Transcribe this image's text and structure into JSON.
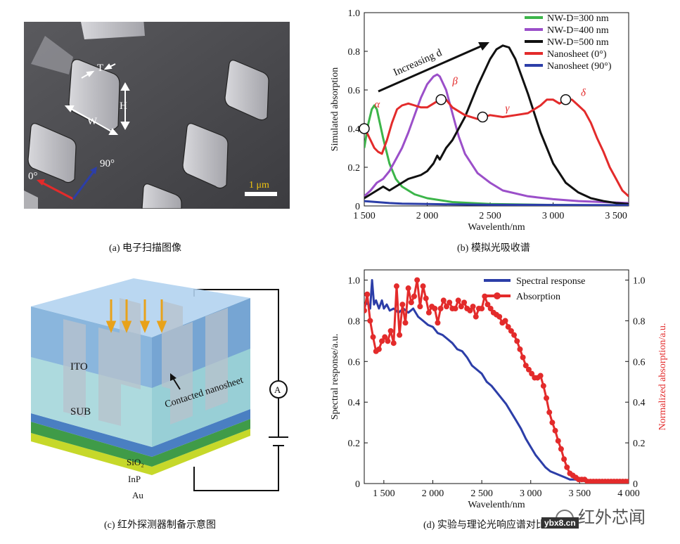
{
  "panel_a": {
    "caption": "(a) 电子扫描图像",
    "labels": {
      "T": "T",
      "H": "H",
      "W": "W",
      "angle0": "0°",
      "angle90": "90°",
      "scale": "1 μm"
    }
  },
  "panel_b": {
    "caption": "(b) 模拟光吸收谱",
    "annotation": "Increasing d",
    "greek": [
      "α",
      "β",
      "γ",
      "δ"
    ],
    "colors": {
      "green": "#3cb54a",
      "purple": "#9b4fc9",
      "black": "#111111",
      "red": "#e32b2b",
      "blue": "#2c3ea8"
    }
  },
  "panel_c": {
    "caption": "(c) 红外探测器制备示意图",
    "labels": {
      "ito": "ITO",
      "sub": "SUB",
      "contacted": "Contacted nanosheet",
      "sio2": "SiO₂",
      "inp": "InP",
      "au": "Au",
      "ammeter": "A"
    }
  },
  "panel_d": {
    "caption": "(d) 实验与理论光响应谱对比"
  },
  "watermark": {
    "brand": "红外芯闻",
    "site": "ybx8.cn"
  },
  "chart_data": [
    {
      "type": "line",
      "title": "",
      "xlabel": "Wavelenth/nm",
      "ylabel": "Simulated absorption",
      "xlim": [
        1500,
        3600
      ],
      "ylim": [
        0,
        1.0
      ],
      "xticks": [
        "1 500",
        "2 000",
        "2 500",
        "3 000",
        "3 500"
      ],
      "xtick_values": [
        1500,
        2000,
        2500,
        3000,
        3500
      ],
      "yticks": [
        "0",
        "0.2",
        "0.4",
        "0.6",
        "0.8",
        "1.0"
      ],
      "ytick_values": [
        0,
        0.2,
        0.4,
        0.6,
        0.8,
        1.0
      ],
      "legend": "top-right",
      "series": [
        {
          "name": "NW-D=300 nm",
          "color": "#3cb54a",
          "x": [
            1500,
            1530,
            1560,
            1580,
            1600,
            1620,
            1650,
            1700,
            1750,
            1800,
            1900,
            2000,
            2200,
            2500,
            3000,
            3600
          ],
          "y": [
            0.3,
            0.42,
            0.5,
            0.52,
            0.5,
            0.44,
            0.35,
            0.22,
            0.14,
            0.1,
            0.06,
            0.04,
            0.02,
            0.01,
            0.005,
            0.002
          ]
        },
        {
          "name": "NW-D=400 nm",
          "color": "#9b4fc9",
          "x": [
            1500,
            1550,
            1600,
            1650,
            1700,
            1750,
            1800,
            1850,
            1900,
            1950,
            2000,
            2050,
            2080,
            2100,
            2150,
            2200,
            2250,
            2300,
            2400,
            2500,
            2600,
            2800,
            3000,
            3200,
            3400,
            3600
          ],
          "y": [
            0.05,
            0.08,
            0.12,
            0.14,
            0.18,
            0.24,
            0.3,
            0.38,
            0.47,
            0.56,
            0.63,
            0.67,
            0.68,
            0.67,
            0.6,
            0.48,
            0.36,
            0.27,
            0.17,
            0.12,
            0.08,
            0.05,
            0.035,
            0.025,
            0.02,
            0.015
          ]
        },
        {
          "name": "NW-D=500 nm",
          "color": "#111111",
          "x": [
            1500,
            1550,
            1600,
            1650,
            1700,
            1750,
            1800,
            1850,
            1900,
            1950,
            2000,
            2050,
            2080,
            2100,
            2150,
            2200,
            2300,
            2400,
            2500,
            2550,
            2600,
            2650,
            2700,
            2800,
            2900,
            3000,
            3100,
            3200,
            3300,
            3400,
            3500,
            3600
          ],
          "y": [
            0.04,
            0.06,
            0.08,
            0.1,
            0.08,
            0.1,
            0.12,
            0.14,
            0.15,
            0.16,
            0.18,
            0.22,
            0.26,
            0.24,
            0.3,
            0.34,
            0.46,
            0.62,
            0.76,
            0.81,
            0.83,
            0.82,
            0.76,
            0.58,
            0.38,
            0.22,
            0.12,
            0.07,
            0.04,
            0.025,
            0.015,
            0.01
          ]
        },
        {
          "name": "Nanosheet (0°)",
          "color": "#e32b2b",
          "x": [
            1500,
            1520,
            1550,
            1580,
            1610,
            1640,
            1680,
            1720,
            1760,
            1800,
            1850,
            1900,
            1950,
            2000,
            2050,
            2100,
            2150,
            2200,
            2300,
            2400,
            2450,
            2500,
            2600,
            2700,
            2800,
            2900,
            2950,
            3000,
            3050,
            3100,
            3150,
            3200,
            3250,
            3300,
            3350,
            3400,
            3450,
            3500,
            3550,
            3600
          ],
          "y": [
            0.4,
            0.38,
            0.34,
            0.3,
            0.28,
            0.27,
            0.34,
            0.43,
            0.5,
            0.52,
            0.53,
            0.52,
            0.51,
            0.51,
            0.53,
            0.55,
            0.55,
            0.51,
            0.47,
            0.45,
            0.46,
            0.47,
            0.46,
            0.47,
            0.48,
            0.52,
            0.55,
            0.55,
            0.53,
            0.55,
            0.55,
            0.52,
            0.49,
            0.43,
            0.35,
            0.28,
            0.2,
            0.14,
            0.08,
            0.05
          ]
        },
        {
          "name": "Nanosheet (90°)",
          "color": "#2c3ea8",
          "x": [
            1500,
            1600,
            1700,
            1800,
            2000,
            2200,
            2500,
            3000,
            3600
          ],
          "y": [
            0.025,
            0.02,
            0.015,
            0.012,
            0.01,
            0.008,
            0.006,
            0.005,
            0.004
          ]
        }
      ],
      "markers_x": [
        1500,
        2110,
        2440,
        3100
      ],
      "markers_y": [
        0.4,
        0.55,
        0.46,
        0.55
      ],
      "greek_x": [
        1580,
        2200,
        2620,
        3220
      ],
      "greek_y": [
        0.51,
        0.63,
        0.49,
        0.57
      ]
    },
    {
      "type": "line",
      "title": "",
      "xlabel": "Wavelenth/nm",
      "ylabel": "Spectral response/a.u.",
      "y2label": "Normalized absorption/a.u.",
      "xlim": [
        1300,
        4000
      ],
      "ylim": [
        0,
        1.05
      ],
      "y2lim": [
        0,
        1.05
      ],
      "xticks": [
        "1 500",
        "2 000",
        "2 500",
        "3 000",
        "3 500",
        "4 000"
      ],
      "xtick_values": [
        1500,
        2000,
        2500,
        3000,
        3500,
        4000
      ],
      "yticks": [
        "0",
        "0.2",
        "0.4",
        "0.6",
        "0.8",
        "1.0"
      ],
      "ytick_values": [
        0,
        0.2,
        0.4,
        0.6,
        0.8,
        1.0
      ],
      "legend": "top-right",
      "series": [
        {
          "name": "Spectral response",
          "color": "#2c3ea8",
          "axis": "left",
          "x": [
            1300,
            1330,
            1360,
            1380,
            1400,
            1420,
            1450,
            1480,
            1500,
            1530,
            1560,
            1600,
            1650,
            1700,
            1750,
            1800,
            1850,
            1900,
            1950,
            2000,
            2050,
            2100,
            2150,
            2200,
            2250,
            2300,
            2350,
            2400,
            2450,
            2500,
            2550,
            2600,
            2650,
            2700,
            2750,
            2800,
            2850,
            2900,
            2950,
            3000,
            3050,
            3100,
            3150,
            3200,
            3250,
            3300,
            3350,
            3400,
            3450,
            3500,
            3600,
            3700,
            3800,
            3900,
            4000
          ],
          "y": [
            0.87,
            0.89,
            0.86,
            1.0,
            0.88,
            0.9,
            0.86,
            0.9,
            0.86,
            0.88,
            0.85,
            0.86,
            0.84,
            0.86,
            0.84,
            0.86,
            0.82,
            0.8,
            0.78,
            0.77,
            0.74,
            0.73,
            0.71,
            0.69,
            0.66,
            0.65,
            0.62,
            0.58,
            0.56,
            0.54,
            0.5,
            0.48,
            0.45,
            0.42,
            0.39,
            0.35,
            0.31,
            0.27,
            0.22,
            0.18,
            0.14,
            0.11,
            0.08,
            0.06,
            0.05,
            0.04,
            0.03,
            0.02,
            0.02,
            0.015,
            0.01,
            0.01,
            0.01,
            0.01,
            0.01
          ]
        },
        {
          "name": "Absorption",
          "color": "#e32b2b",
          "axis": "right",
          "x": [
            1300,
            1330,
            1360,
            1390,
            1420,
            1450,
            1480,
            1510,
            1540,
            1570,
            1600,
            1630,
            1660,
            1690,
            1720,
            1750,
            1780,
            1810,
            1840,
            1870,
            1900,
            1930,
            1960,
            1990,
            2020,
            2050,
            2080,
            2110,
            2140,
            2170,
            2200,
            2230,
            2260,
            2290,
            2320,
            2350,
            2380,
            2410,
            2440,
            2470,
            2500,
            2530,
            2560,
            2590,
            2620,
            2650,
            2680,
            2710,
            2740,
            2770,
            2800,
            2830,
            2860,
            2890,
            2920,
            2950,
            2980,
            3010,
            3040,
            3070,
            3100,
            3130,
            3160,
            3190,
            3220,
            3250,
            3280,
            3310,
            3340,
            3370,
            3400,
            3430,
            3460,
            3490,
            3520,
            3550,
            3580,
            3610,
            3640,
            3670,
            3700,
            3730,
            3760,
            3790,
            3820,
            3850,
            3880,
            3910,
            3940,
            3970,
            4000
          ],
          "y": [
            0.85,
            0.93,
            0.8,
            0.72,
            0.65,
            0.66,
            0.7,
            0.72,
            0.7,
            0.75,
            0.69,
            0.97,
            0.73,
            0.88,
            0.79,
            0.96,
            0.89,
            0.92,
            1.0,
            0.87,
            0.97,
            0.91,
            0.84,
            0.87,
            0.86,
            0.79,
            0.86,
            0.9,
            0.87,
            0.89,
            0.86,
            0.86,
            0.9,
            0.87,
            0.89,
            0.86,
            0.85,
            0.87,
            0.82,
            0.86,
            0.86,
            0.92,
            0.88,
            0.86,
            0.84,
            0.83,
            0.82,
            0.79,
            0.8,
            0.77,
            0.75,
            0.73,
            0.7,
            0.66,
            0.62,
            0.58,
            0.56,
            0.54,
            0.52,
            0.52,
            0.53,
            0.48,
            0.42,
            0.35,
            0.3,
            0.26,
            0.21,
            0.17,
            0.12,
            0.08,
            0.05,
            0.04,
            0.03,
            0.02,
            0.02,
            0.02,
            0.01,
            0.01,
            0.01,
            0.01,
            0.01,
            0.01,
            0.01,
            0.01,
            0.01,
            0.01,
            0.01,
            0.01,
            0.01,
            0.01,
            0.01
          ]
        }
      ]
    }
  ]
}
